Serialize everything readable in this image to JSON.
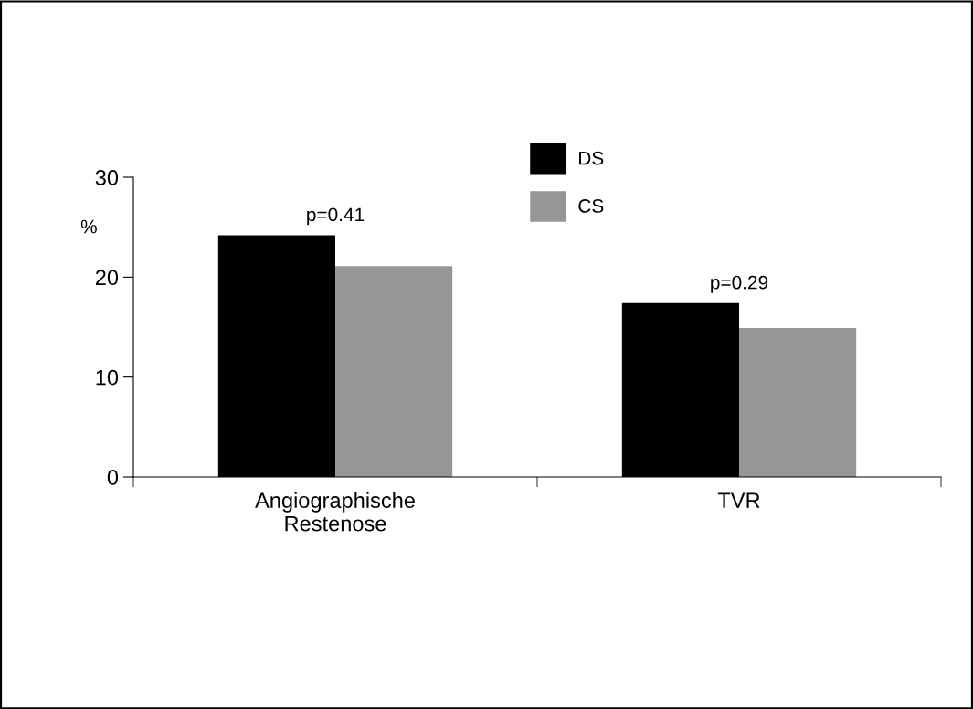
{
  "chart_data": {
    "type": "bar",
    "categories": [
      "Angiographische\nRestenose",
      "TVR"
    ],
    "ylabel": "%",
    "series": [
      {
        "name": "DS",
        "color": "#000000",
        "values": [
          24.2,
          17.4
        ]
      },
      {
        "name": "CS",
        "color": "#969696",
        "values": [
          21.1,
          14.9
        ]
      }
    ],
    "ylim": [
      0,
      30
    ],
    "yticks": [
      0,
      10,
      20,
      30
    ],
    "grid": false,
    "legend": "top",
    "annotations": [
      {
        "text": "p=0.41",
        "x": "Angiographische\nRestenose",
        "y": 24.2
      },
      {
        "text": "p=0.29",
        "x": "TVR",
        "y": 17.4
      }
    ]
  }
}
